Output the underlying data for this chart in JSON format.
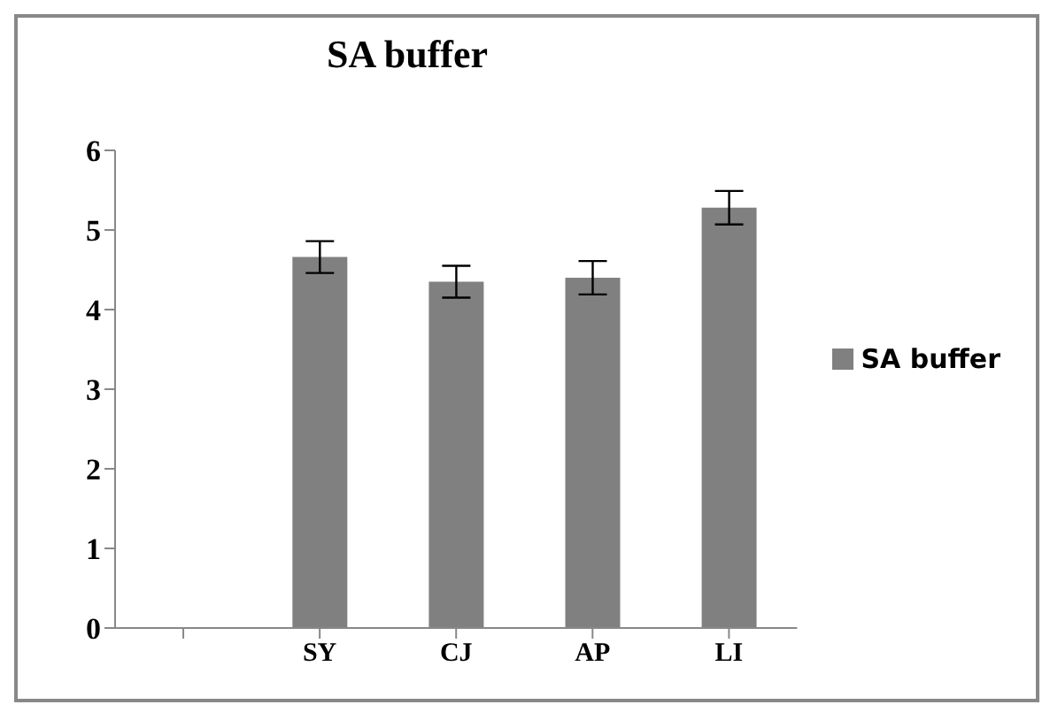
{
  "chart_data": {
    "type": "bar",
    "title": "SA buffer",
    "categories": [
      null,
      "SY",
      "CJ",
      "AP",
      "LI"
    ],
    "series": [
      {
        "name": "SA buffer",
        "color": "#808080",
        "values": [
          null,
          4.66,
          4.35,
          4.4,
          5.28
        ],
        "errors": [
          null,
          0.2,
          0.2,
          0.21,
          0.21
        ]
      }
    ],
    "ylim": [
      0,
      6
    ],
    "yticks": [
      0,
      1,
      2,
      3,
      4,
      5,
      6
    ],
    "grid": false,
    "legend": "right"
  }
}
